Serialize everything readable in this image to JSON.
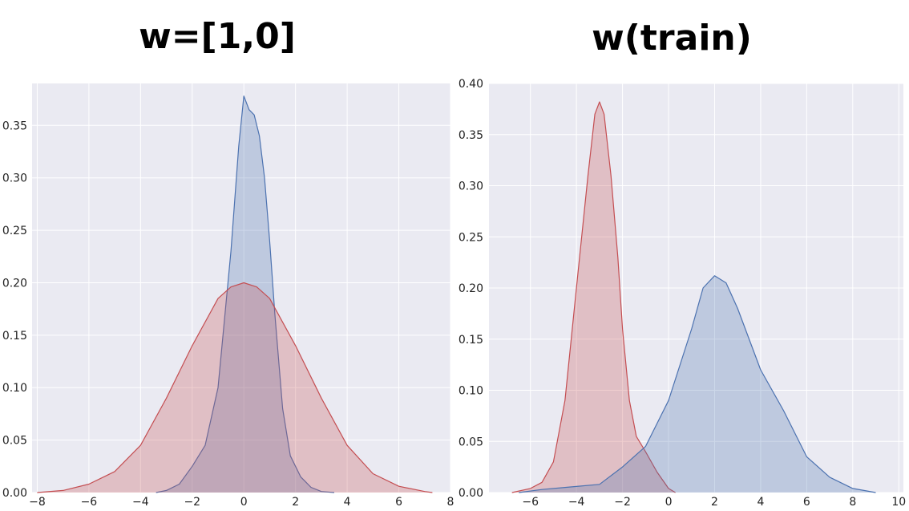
{
  "chart_data": [
    {
      "type": "area",
      "title": "w=[1,0]",
      "xlabel": "",
      "ylabel": "",
      "xlim": [
        -8.2,
        8.0
      ],
      "ylim": [
        0,
        0.39
      ],
      "xticks": [
        -8,
        -6,
        -4,
        -2,
        0,
        2,
        4,
        6,
        8
      ],
      "yticks": [
        0.0,
        0.05,
        0.1,
        0.15,
        0.2,
        0.25,
        0.3,
        0.35
      ],
      "ytick_labels": [
        "0.00",
        "0.05",
        "0.10",
        "0.15",
        "0.20",
        "0.25",
        "0.30",
        "0.35"
      ],
      "grid": true,
      "colors": {
        "background": "#eaeaf2",
        "blue": "#4c72b0",
        "red": "#c44e52"
      },
      "series": [
        {
          "name": "blue",
          "color": "#4c72b0",
          "x": [
            -3.4,
            -3.0,
            -2.5,
            -2.0,
            -1.5,
            -1.0,
            -0.5,
            -0.2,
            0.0,
            0.2,
            0.4,
            0.6,
            0.8,
            1.0,
            1.2,
            1.5,
            1.8,
            2.2,
            2.6,
            3.0,
            3.5
          ],
          "y": [
            0.0,
            0.002,
            0.008,
            0.025,
            0.045,
            0.1,
            0.23,
            0.33,
            0.378,
            0.365,
            0.36,
            0.34,
            0.3,
            0.24,
            0.17,
            0.08,
            0.035,
            0.015,
            0.005,
            0.001,
            0.0
          ]
        },
        {
          "name": "red",
          "color": "#c44e52",
          "x": [
            -8.0,
            -7.0,
            -6.0,
            -5.0,
            -4.0,
            -3.0,
            -2.0,
            -1.0,
            -0.5,
            0.0,
            0.5,
            1.0,
            2.0,
            3.0,
            4.0,
            5.0,
            6.0,
            7.0,
            7.3
          ],
          "y": [
            0.0,
            0.002,
            0.008,
            0.02,
            0.045,
            0.09,
            0.14,
            0.185,
            0.196,
            0.2,
            0.196,
            0.185,
            0.14,
            0.09,
            0.045,
            0.018,
            0.006,
            0.001,
            0.0
          ]
        }
      ]
    },
    {
      "type": "area",
      "title": "w(train)",
      "xlabel": "",
      "ylabel": "",
      "xlim": [
        -7.8,
        10.2
      ],
      "ylim": [
        0,
        0.4
      ],
      "xticks": [
        -6,
        -4,
        -2,
        0,
        2,
        4,
        6,
        8,
        10
      ],
      "yticks": [
        0.0,
        0.05,
        0.1,
        0.15,
        0.2,
        0.25,
        0.3,
        0.35,
        0.4
      ],
      "ytick_labels": [
        "0.00",
        "0.05",
        "0.10",
        "0.15",
        "0.20",
        "0.25",
        "0.30",
        "0.35",
        "0.40"
      ],
      "grid": true,
      "colors": {
        "background": "#eaeaf2",
        "blue": "#4c72b0",
        "red": "#c44e52"
      },
      "series": [
        {
          "name": "red",
          "color": "#c44e52",
          "x": [
            -6.8,
            -6.0,
            -5.5,
            -5.0,
            -4.5,
            -4.0,
            -3.5,
            -3.2,
            -3.0,
            -2.8,
            -2.5,
            -2.2,
            -2.0,
            -1.7,
            -1.4,
            -1.0,
            -0.5,
            0.0,
            0.3
          ],
          "y": [
            0.0,
            0.004,
            0.01,
            0.03,
            0.09,
            0.2,
            0.31,
            0.37,
            0.382,
            0.37,
            0.31,
            0.23,
            0.16,
            0.09,
            0.055,
            0.04,
            0.02,
            0.004,
            0.0
          ]
        },
        {
          "name": "blue",
          "color": "#4c72b0",
          "x": [
            -6.5,
            -5.5,
            -4.5,
            -4.0,
            -3.0,
            -2.0,
            -1.0,
            0.0,
            1.0,
            1.5,
            2.0,
            2.5,
            3.0,
            4.0,
            5.0,
            6.0,
            7.0,
            8.0,
            9.0
          ],
          "y": [
            0.0,
            0.003,
            0.005,
            0.006,
            0.008,
            0.025,
            0.045,
            0.09,
            0.16,
            0.2,
            0.212,
            0.205,
            0.18,
            0.12,
            0.08,
            0.035,
            0.015,
            0.004,
            0.0
          ]
        }
      ]
    }
  ]
}
